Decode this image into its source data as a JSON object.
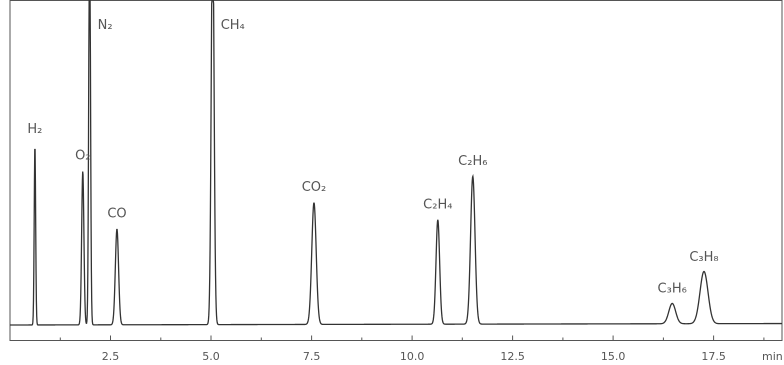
{
  "chart_data": {
    "type": "line",
    "title": "",
    "xlabel": "min",
    "ylabel": "",
    "xlim": [
      0.0,
      19.2
    ],
    "ylim": [
      0,
      100
    ],
    "grid": false,
    "legend": "none",
    "x_ticks": [
      "2.5",
      "5.0",
      "7.5",
      "10.0",
      "12.5",
      "15.0",
      "17.5"
    ],
    "colors": {
      "trace": "#333333",
      "frame": "#555555",
      "text": "#555555"
    },
    "peaks": [
      {
        "label": "H₂",
        "rt": 0.62,
        "height": 62,
        "width": 0.018
      },
      {
        "label": "O₂",
        "rt": 1.81,
        "height": 53,
        "width": 0.028
      },
      {
        "label": "N₂",
        "rt": 1.98,
        "height": 140,
        "width": 0.022
      },
      {
        "label": "CO",
        "rt": 2.66,
        "height": 33,
        "width": 0.04
      },
      {
        "label": "CH₄",
        "rt": 5.04,
        "height": 140,
        "width": 0.035
      },
      {
        "label": "CO₂",
        "rt": 7.56,
        "height": 42,
        "width": 0.055
      },
      {
        "label": "C₂H₄",
        "rt": 10.64,
        "height": 36,
        "width": 0.045
      },
      {
        "label": "C₂H₆",
        "rt": 11.51,
        "height": 51,
        "width": 0.055
      },
      {
        "label": "C₃H₆",
        "rt": 16.47,
        "height": 7,
        "width": 0.085
      },
      {
        "label": "C₃H₈",
        "rt": 17.26,
        "height": 18,
        "width": 0.1
      }
    ]
  }
}
